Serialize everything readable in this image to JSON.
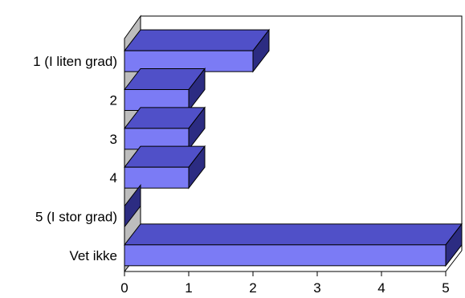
{
  "chart_data": {
    "type": "bar",
    "orientation": "horizontal",
    "style": "3d",
    "categories": [
      "1 (I liten grad)",
      "2",
      "3",
      "4",
      "5 (I stor grad)",
      "Vet ikke"
    ],
    "values": [
      2,
      1,
      1,
      1,
      0,
      5
    ],
    "xlim": [
      0,
      5
    ],
    "x_ticks": [
      "0",
      "1",
      "2",
      "3",
      "4",
      "5"
    ],
    "title": "",
    "xlabel": "",
    "ylabel": "",
    "legend": "none",
    "grid": false,
    "colors": {
      "bar_front": "#7b7bf5",
      "bar_top": "#5050c8",
      "bar_side": "#2c2c82",
      "wall": "#bdbdbd",
      "outline": "#000000"
    }
  }
}
